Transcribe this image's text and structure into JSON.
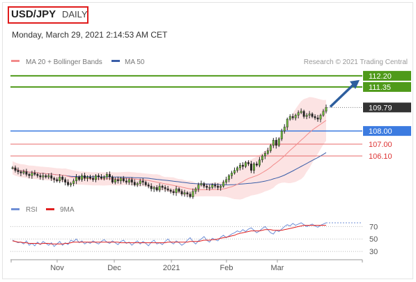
{
  "header": {
    "symbol": "USD/JPY",
    "period": "DAILY",
    "datetime": "Monday, March 29, 2021 2:14:53 AM CET"
  },
  "colors": {
    "ma20": "#f28b8b",
    "ma50": "#3a5ea8",
    "bands_fill": "#fbd9d9",
    "resistance": "#4f9a1a",
    "support": "#3c7be0",
    "support_weak": "#e86a6a",
    "current": "#333333",
    "arrow": "#2d5e9e",
    "rsi": "#6f8fd6",
    "rsi_ma": "#e02020"
  },
  "chart_data": [
    {
      "type": "candlestick",
      "title": "",
      "legend": [
        {
          "name": "MA 20 + Bollinger Bands",
          "color": "#f28b8b"
        },
        {
          "name": "MA 50",
          "color": "#3a5ea8"
        }
      ],
      "credit": "Research © 2021 Trading Central",
      "x_tick_labels": [
        "Nov",
        "Dec",
        "2021",
        "Feb",
        "Mar"
      ],
      "ylim": [
        102.6,
        113.2
      ],
      "price_close": [
        105.2,
        105.0,
        104.9,
        104.8,
        104.9,
        104.7,
        104.6,
        104.8,
        104.7,
        104.6,
        104.5,
        104.6,
        104.5,
        104.6,
        104.4,
        104.3,
        104.2,
        104.5,
        104.3,
        104.1,
        103.9,
        104.0,
        104.2,
        104.5,
        104.3,
        104.6,
        104.4,
        104.5,
        104.4,
        104.3,
        104.6,
        104.5,
        104.4,
        104.5,
        104.7,
        104.5,
        104.1,
        104.3,
        104.2,
        104.4,
        104.2,
        104.1,
        104.3,
        104.1,
        103.9,
        104.0,
        104.2,
        104.1,
        103.9,
        103.8,
        103.6,
        103.7,
        103.5,
        103.8,
        103.7,
        103.6,
        103.5,
        103.4,
        103.3,
        103.6,
        103.4,
        103.2,
        103.3,
        103.2,
        103.0,
        103.4,
        103.6,
        103.9,
        104.0,
        103.8,
        103.7,
        103.7,
        103.9,
        103.8,
        103.7,
        103.8,
        104.1,
        104.3,
        104.6,
        104.8,
        105.0,
        105.2,
        105.4,
        105.3,
        105.6,
        105.5,
        105.0,
        105.5,
        105.4,
        105.8,
        106.1,
        106.3,
        106.5,
        106.9,
        107.3,
        106.9,
        107.4,
        108.0,
        108.3,
        108.9,
        109.1,
        109.0,
        109.2,
        109.4,
        109.5,
        109.1,
        109.2,
        109.3,
        109.1,
        109.0,
        108.9,
        109.2,
        109.5,
        109.79
      ],
      "levels": [
        {
          "value": 112.2,
          "label": "112.20",
          "kind": "resistance"
        },
        {
          "value": 111.35,
          "label": "111.35",
          "kind": "resistance"
        },
        {
          "value": 109.79,
          "label": "109.79",
          "kind": "current"
        },
        {
          "value": 108.0,
          "label": "108.00",
          "kind": "support"
        },
        {
          "value": 107.0,
          "label": "107.00",
          "kind": "support-weak"
        },
        {
          "value": 106.1,
          "label": "106.10",
          "kind": "support-weak"
        }
      ],
      "grid": false
    },
    {
      "type": "line",
      "title": "",
      "legend": [
        {
          "name": "RSI",
          "color": "#6f8fd6"
        },
        {
          "name": "9MA",
          "color": "#e02020"
        }
      ],
      "y_ticks": [
        70,
        50,
        30
      ],
      "ylim": [
        20,
        85
      ],
      "rsi": [
        48,
        46,
        44,
        45,
        42,
        47,
        40,
        43,
        39,
        45,
        41,
        46,
        43,
        40,
        44,
        38,
        42,
        46,
        40,
        44,
        41,
        48,
        46,
        50,
        44,
        47,
        42,
        45,
        43,
        47,
        44,
        42,
        46,
        49,
        45,
        43,
        47,
        44,
        41,
        46,
        48,
        43,
        45,
        40,
        44,
        47,
        42,
        46,
        43,
        39,
        45,
        48,
        42,
        44,
        41,
        46,
        50,
        45,
        42,
        47,
        44,
        40,
        43,
        48,
        52,
        46,
        42,
        47,
        50,
        54,
        48,
        45,
        51,
        49,
        47,
        53,
        56,
        52,
        55,
        58,
        60,
        63,
        61,
        65,
        62,
        66,
        68,
        64,
        60,
        63,
        67,
        70,
        65,
        60,
        58,
        64,
        62,
        66,
        70,
        73,
        71,
        75,
        72,
        74,
        76,
        73,
        70,
        72,
        74,
        71,
        69,
        72,
        74,
        76
      ],
      "rsi_ma": [
        47,
        46,
        45,
        45,
        44,
        44,
        43,
        43,
        43,
        43,
        42,
        43,
        43,
        43,
        42,
        42,
        42,
        42,
        42,
        43,
        43,
        44,
        45,
        45,
        45,
        45,
        45,
        45,
        45,
        45,
        45,
        45,
        45,
        45,
        45,
        45,
        45,
        45,
        45,
        44,
        44,
        44,
        44,
        44,
        44,
        44,
        44,
        44,
        44,
        44,
        44,
        44,
        44,
        44,
        44,
        44,
        45,
        45,
        45,
        45,
        45,
        45,
        45,
        45,
        46,
        46,
        46,
        46,
        47,
        48,
        48,
        48,
        49,
        49,
        50,
        51,
        52,
        53,
        54,
        55,
        56,
        58,
        59,
        60,
        61,
        62,
        63,
        63,
        63,
        63,
        64,
        65,
        65,
        65,
        64,
        64,
        64,
        64,
        65,
        66,
        67,
        68,
        69,
        70,
        71,
        72,
        72,
        72,
        72,
        72,
        72,
        72,
        72,
        72
      ]
    }
  ]
}
